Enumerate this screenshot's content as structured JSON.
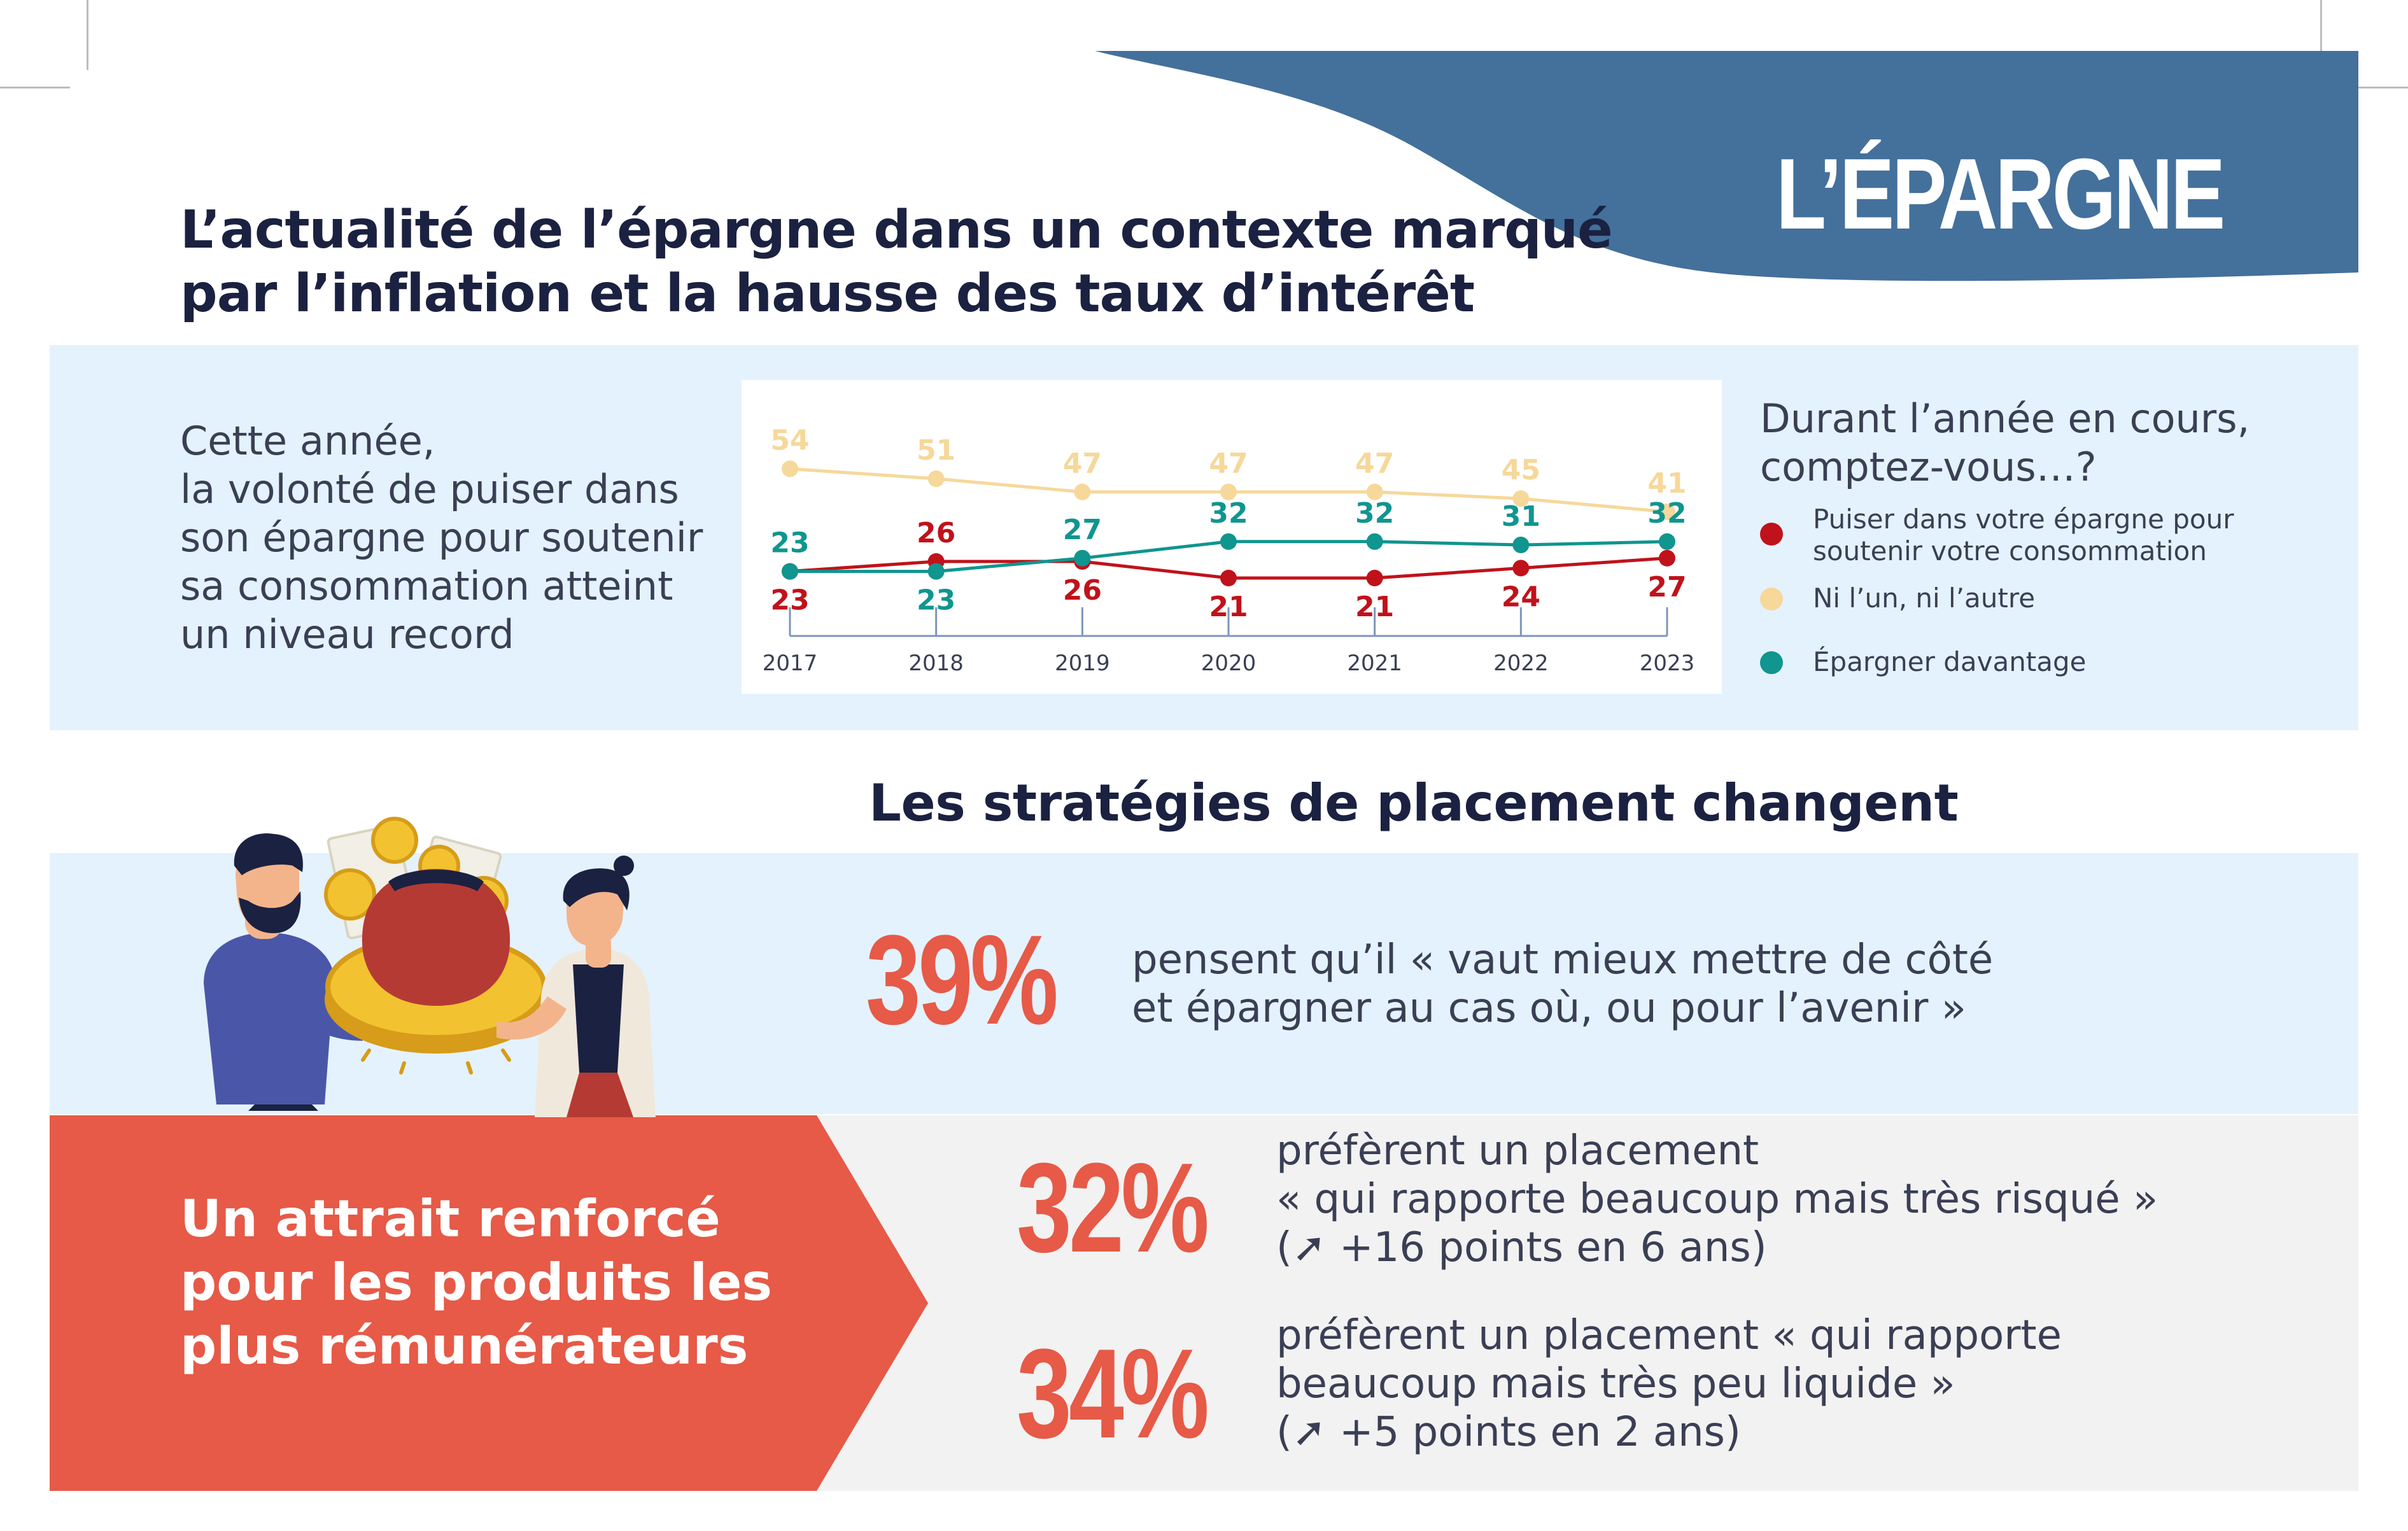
{
  "brand": {
    "tag": "L’ÉPARGNE"
  },
  "colors": {
    "blue": "#44709c",
    "red": "#e65a47",
    "navy": "#1b2140",
    "light_blue": "#e4f2fd",
    "dark_red": "#c0121b",
    "yellow": "#f6d89a",
    "teal": "#10958f"
  },
  "header": {
    "title_line1": "L’actualité de l’épargne dans un contexte marqué",
    "title_line2": "par l’inflation et la hausse des taux d’intérêt"
  },
  "intro": {
    "lines": [
      "Cette année,",
      "la volonté de puiser dans",
      "son épargne pour soutenir",
      "sa consommation atteint",
      "un niveau record"
    ]
  },
  "legend": {
    "question_line1": "Durant l’année en cours,",
    "question_line2": "comptez-vous…?",
    "items": [
      {
        "line1": "Puiser dans votre épargne pour",
        "line2": "soutenir votre consommation"
      },
      {
        "line1": "Ni l’un, ni l’autre",
        "line2": ""
      },
      {
        "line1": "Épargner davantage",
        "line2": ""
      }
    ]
  },
  "chart_data": {
    "type": "line",
    "x": [
      "2017",
      "2018",
      "2019",
      "2020",
      "2021",
      "2022",
      "2023"
    ],
    "series": [
      {
        "name": "Puiser dans votre épargne pour soutenir votre consommation",
        "color": "#c0121b",
        "values": [
          23,
          26,
          26,
          21,
          21,
          24,
          27
        ]
      },
      {
        "name": "Ni l’un, ni l’autre",
        "color": "#f6d89a",
        "values": [
          54,
          51,
          47,
          47,
          47,
          45,
          41
        ]
      },
      {
        "name": "Épargner davantage",
        "color": "#10958f",
        "values": [
          23,
          23,
          27,
          32,
          32,
          31,
          32
        ]
      }
    ],
    "title": "",
    "xlabel": "",
    "ylabel": "",
    "grid": false,
    "legend_position": "right"
  },
  "section2": {
    "title": "Les stratégies de placement changent"
  },
  "stats": [
    {
      "value": "39%",
      "lines": [
        "pensent qu’il « vaut mieux mettre de côté",
        "et épargner au cas où, ou pour l’avenir »"
      ]
    },
    {
      "value": "32%",
      "lines": [
        "préfèrent un placement",
        "« qui rapporte beaucoup mais très risqué »",
        "(➚ +16 points en 6 ans)"
      ]
    },
    {
      "value": "34%",
      "lines": [
        "préfèrent un placement « qui rapporte",
        " beaucoup mais très peu liquide »",
        "(➚ +5 points en 2 ans)"
      ]
    }
  ],
  "red_block": {
    "lines": [
      "Un attrait renforcé",
      "pour les produits les",
      "plus rémunérateurs"
    ]
  },
  "illustration": {
    "icon": "people-holding-coin-icon"
  }
}
